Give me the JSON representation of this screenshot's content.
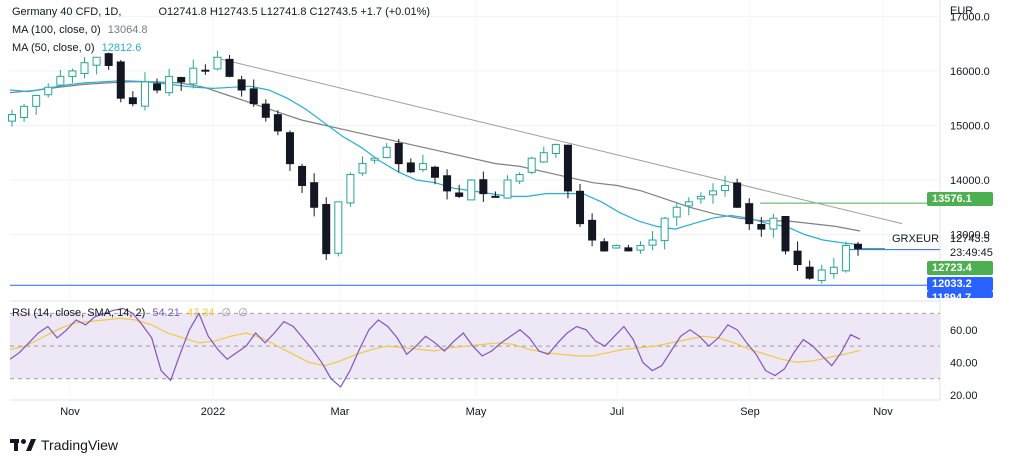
{
  "legend": {
    "symbol": "Germany 40 CFD, 1D,",
    "ohlc": "O12741.8  H12743.5  L12741.8  C12743.5  +1.7 (+0.01%)",
    "ma100_label": "MA (100, close, 0)",
    "ma100_value": "13064.8",
    "ma50_label": "MA (50, close, 0)",
    "ma50_value": "12812.6",
    "rsi_label": "RSI (14, close, SMA, 14, 2)",
    "rsi_value": "54.21",
    "rsi_ma_value": "47.34",
    "rsi_extra1": "∅",
    "rsi_extra2": "∅"
  },
  "currency": "EUR",
  "price_labels": {
    "p13576": "13576.1",
    "p12723": "12723.4",
    "p12033": "12033.2",
    "p11894": "11894.7",
    "current_price": "12743.5",
    "countdown": "23:49:45",
    "symbol_tag": "GRXEUR"
  },
  "brand": "TradingView",
  "colors": {
    "candle_up": "#26a69a",
    "candle_down": "#131722",
    "ma50": "#22b1d6",
    "ma100": "#808080",
    "trendline": "#9e9e9e",
    "green_line": "#4caf50",
    "blue_line": "#2962ff",
    "rsi": "#7e57c2",
    "rsi_ma": "#f5c842",
    "rsi_band": "#ede7f6"
  },
  "chart_data": [
    {
      "type": "candlestick",
      "title": "Germany 40 CFD, 1D",
      "x_ticks": [
        "Nov",
        "2022",
        "Mar",
        "May",
        "Jul",
        "Sep",
        "Nov"
      ],
      "y_ticks": [
        "17000.0",
        "16000.0",
        "15000.0",
        "14000.0",
        "13000.0"
      ],
      "ylim": [
        11800,
        17300
      ],
      "close_path": [
        15200,
        15350,
        15550,
        15700,
        15900,
        16000,
        16150,
        16250,
        16100,
        15500,
        15400,
        15800,
        15650,
        15900,
        15800,
        16050,
        16000,
        16250,
        15900,
        15650,
        15400,
        15150,
        14900,
        14300,
        13900,
        13500,
        12650,
        13600,
        14100,
        14300,
        14400,
        14600,
        14300,
        14150,
        14300,
        14050,
        13800,
        13700,
        14000,
        13750,
        13700,
        14000,
        14100,
        14400,
        14500,
        14650,
        13800,
        13200,
        12900,
        12700,
        12800,
        12700,
        12800,
        12900,
        13300,
        13500,
        13600,
        13700,
        13800,
        13900,
        13500,
        13200,
        13100,
        13300,
        12700,
        12450,
        12200,
        12350,
        12400,
        12800,
        12743.5
      ],
      "ma50_path": [
        15650,
        15620,
        15680,
        15740,
        15780,
        15800,
        15820,
        15810,
        15780,
        15740,
        15700,
        15680,
        15700,
        15720,
        15650,
        15500,
        15300,
        15050,
        14800,
        14600,
        14350,
        14150,
        14000,
        13950,
        13850,
        13800,
        13750,
        13700,
        13700,
        13750,
        13750,
        13750,
        13600,
        13400,
        13250,
        13150,
        13100,
        13200,
        13300,
        13350,
        13300,
        13200,
        13150,
        13000,
        12900,
        12850,
        12812.6
      ],
      "ma100_path": [
        15600,
        15640,
        15700,
        15750,
        15780,
        15800,
        15800,
        15780,
        15700,
        15550,
        15400,
        15250,
        15100,
        15000,
        14900,
        14800,
        14700,
        14600,
        14500,
        14400,
        14300,
        14250,
        14150,
        14050,
        13950,
        13900,
        13800,
        13650,
        13500,
        13380,
        13300,
        13250,
        13250,
        13200,
        13150,
        13064.8
      ],
      "trendline": {
        "from": 16250,
        "to": 13200
      },
      "horizontal_levels": [
        13576.1,
        12723.4,
        12033.2,
        11894.7
      ]
    },
    {
      "type": "line",
      "title": "RSI (14, close, SMA, 14, 2)",
      "y_ticks": [
        "60.00",
        "40.00",
        "20.00"
      ],
      "ylim": [
        17,
        77
      ],
      "band": [
        30,
        70
      ],
      "midline": 50,
      "rsi_path": [
        42,
        46,
        52,
        58,
        62,
        55,
        60,
        66,
        63,
        68,
        70,
        72,
        73,
        70,
        63,
        55,
        35,
        29,
        45,
        60,
        70,
        56,
        48,
        42,
        46,
        50,
        58,
        52,
        58,
        65,
        62,
        55,
        48,
        40,
        30,
        25,
        35,
        48,
        60,
        66,
        62,
        55,
        45,
        50,
        56,
        52,
        47,
        53,
        58,
        50,
        44,
        47,
        52,
        56,
        60,
        55,
        47,
        45,
        52,
        58,
        62,
        60,
        53,
        50,
        56,
        62,
        54,
        40,
        35,
        38,
        47,
        56,
        60,
        56,
        50,
        55,
        63,
        60,
        52,
        45,
        35,
        32,
        36,
        46,
        54,
        50,
        44,
        38,
        46,
        57,
        54.21
      ],
      "rsi_ma_path": [
        48,
        50,
        55,
        60,
        64,
        65,
        66,
        67,
        66,
        63,
        58,
        55,
        52,
        53,
        56,
        58,
        55,
        50,
        45,
        40,
        38,
        41,
        45,
        48,
        50,
        49,
        48,
        47,
        49,
        50,
        51,
        52,
        51,
        48,
        46,
        45,
        44,
        44,
        46,
        48,
        49,
        50,
        52,
        54,
        56,
        55,
        52,
        48,
        45,
        42,
        40,
        41,
        43,
        45,
        47.34
      ]
    }
  ]
}
